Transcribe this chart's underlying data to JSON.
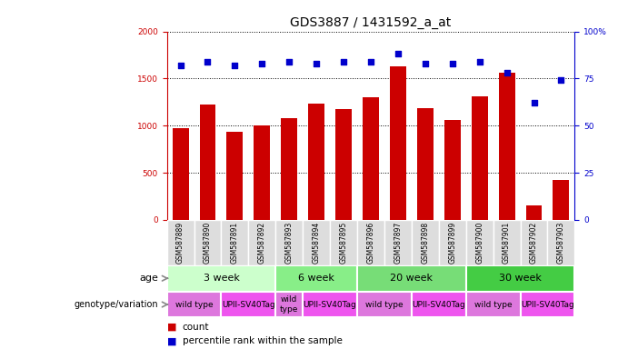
{
  "title": "GDS3887 / 1431592_a_at",
  "samples": [
    "GSM587889",
    "GSM587890",
    "GSM587891",
    "GSM587892",
    "GSM587893",
    "GSM587894",
    "GSM587895",
    "GSM587896",
    "GSM587897",
    "GSM587898",
    "GSM587899",
    "GSM587900",
    "GSM587901",
    "GSM587902",
    "GSM587903"
  ],
  "counts": [
    975,
    1220,
    930,
    1000,
    1080,
    1230,
    1180,
    1300,
    1630,
    1185,
    1060,
    1310,
    1560,
    150,
    420
  ],
  "percentiles": [
    82,
    84,
    82,
    83,
    84,
    83,
    84,
    84,
    88,
    83,
    83,
    84,
    78,
    62,
    74
  ],
  "bar_color": "#cc0000",
  "dot_color": "#0000cc",
  "ylim_left": [
    0,
    2000
  ],
  "ylim_right": [
    0,
    100
  ],
  "yticks_left": [
    0,
    500,
    1000,
    1500,
    2000
  ],
  "yticks_right": [
    0,
    25,
    50,
    75,
    100
  ],
  "ytick_labels_right": [
    "0",
    "25",
    "50",
    "75",
    "100%"
  ],
  "age_groups": [
    {
      "label": "3 week",
      "start": 0,
      "end": 4,
      "color": "#ccffcc"
    },
    {
      "label": "6 week",
      "start": 4,
      "end": 7,
      "color": "#88ee88"
    },
    {
      "label": "20 week",
      "start": 7,
      "end": 11,
      "color": "#77dd77"
    },
    {
      "label": "30 week",
      "start": 11,
      "end": 15,
      "color": "#44cc44"
    }
  ],
  "genotype_groups": [
    {
      "label": "wild type",
      "start": 0,
      "end": 2,
      "color": "#dd77dd"
    },
    {
      "label": "UPII-SV40Tag",
      "start": 2,
      "end": 4,
      "color": "#ee55ee"
    },
    {
      "label": "wild\ntype",
      "start": 4,
      "end": 5,
      "color": "#dd77dd"
    },
    {
      "label": "UPII-SV40Tag",
      "start": 5,
      "end": 7,
      "color": "#ee55ee"
    },
    {
      "label": "wild type",
      "start": 7,
      "end": 9,
      "color": "#dd77dd"
    },
    {
      "label": "UPII-SV40Tag",
      "start": 9,
      "end": 11,
      "color": "#ee55ee"
    },
    {
      "label": "wild type",
      "start": 11,
      "end": 13,
      "color": "#dd77dd"
    },
    {
      "label": "UPII-SV40Tag",
      "start": 13,
      "end": 15,
      "color": "#ee55ee"
    }
  ],
  "legend_count_color": "#cc0000",
  "legend_percentile_color": "#0000cc",
  "bar_width": 0.6,
  "bg_color": "#ffffff",
  "title_fontsize": 10,
  "tick_fontsize": 6.5,
  "sample_box_color": "#dddddd"
}
